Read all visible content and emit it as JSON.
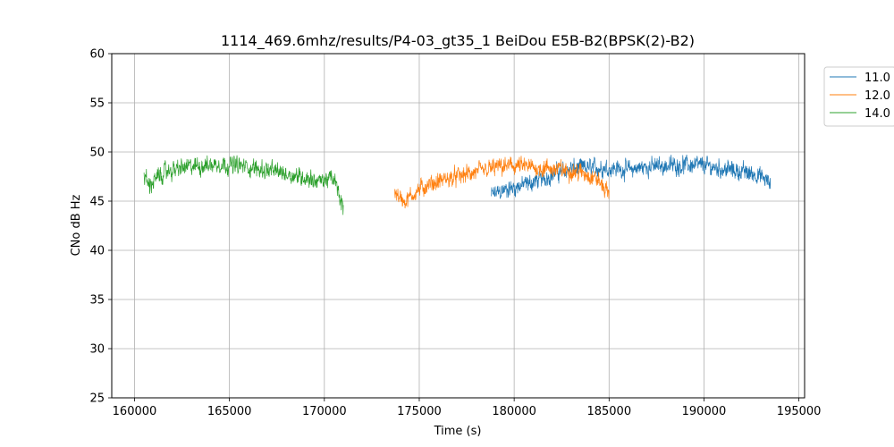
{
  "chart_data": {
    "type": "line",
    "title": "1114_469.6mhz/results/P4-03_gt35_1 BeiDou E5B-B2(BPSK(2)-B2)",
    "xlabel": "Time (s)",
    "ylabel": "CNo dB Hz",
    "xlim": [
      158800,
      195300
    ],
    "ylim": [
      25,
      60
    ],
    "xticks": [
      160000,
      165000,
      170000,
      175000,
      180000,
      185000,
      190000,
      195000
    ],
    "yticks": [
      25,
      30,
      35,
      40,
      45,
      50,
      55,
      60
    ],
    "grid": true,
    "legend_position": "outside-top-right",
    "series": [
      {
        "name": "11.0",
        "color": "#1f77b4",
        "noise": 1.0,
        "points": [
          [
            178800,
            45.6
          ],
          [
            179300,
            46.0
          ],
          [
            180000,
            46.4
          ],
          [
            180800,
            46.8
          ],
          [
            181500,
            47.3
          ],
          [
            182200,
            47.9
          ],
          [
            183000,
            48.3
          ],
          [
            184000,
            48.4
          ],
          [
            185000,
            48.4
          ],
          [
            186000,
            48.2
          ],
          [
            187000,
            48.5
          ],
          [
            188000,
            48.6
          ],
          [
            189000,
            48.7
          ],
          [
            190000,
            48.6
          ],
          [
            191000,
            48.3
          ],
          [
            192000,
            48.0
          ],
          [
            192800,
            47.7
          ],
          [
            193300,
            47.1
          ],
          [
            193500,
            46.6
          ]
        ]
      },
      {
        "name": "12.0",
        "color": "#ff7f0e",
        "noise": 1.0,
        "points": [
          [
            173700,
            46.2
          ],
          [
            174000,
            45.3
          ],
          [
            174300,
            45.0
          ],
          [
            174700,
            45.8
          ],
          [
            175200,
            46.4
          ],
          [
            176000,
            47.0
          ],
          [
            177000,
            47.5
          ],
          [
            178000,
            47.9
          ],
          [
            179000,
            48.4
          ],
          [
            180000,
            48.6
          ],
          [
            181000,
            48.4
          ],
          [
            182000,
            48.3
          ],
          [
            183000,
            48.1
          ],
          [
            183800,
            47.8
          ],
          [
            184400,
            47.2
          ],
          [
            184700,
            46.4
          ],
          [
            185000,
            45.9
          ]
        ]
      },
      {
        "name": "14.0",
        "color": "#2ca02c",
        "noise": 1.0,
        "points": [
          [
            160500,
            47.6
          ],
          [
            160800,
            46.6
          ],
          [
            161200,
            47.4
          ],
          [
            161700,
            48.0
          ],
          [
            162500,
            48.4
          ],
          [
            163500,
            48.6
          ],
          [
            164500,
            48.8
          ],
          [
            165500,
            48.6
          ],
          [
            166500,
            48.3
          ],
          [
            167500,
            48.0
          ],
          [
            168500,
            47.6
          ],
          [
            169200,
            47.3
          ],
          [
            169800,
            47.0
          ],
          [
            170200,
            47.3
          ],
          [
            170500,
            47.2
          ],
          [
            170700,
            46.2
          ],
          [
            170900,
            44.8
          ],
          [
            171000,
            44.3
          ]
        ]
      }
    ]
  }
}
